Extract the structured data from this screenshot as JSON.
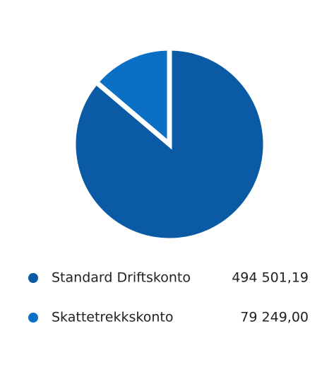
{
  "chart_data": {
    "type": "pie",
    "categories": [
      "Standard Driftskonto",
      "Skattetrekkskonto"
    ],
    "values": [
      494501.19,
      79249.0
    ],
    "value_labels": [
      "494 501,19",
      "79 249,00"
    ],
    "colors": [
      "#0a5aa6",
      "#0b6fc6"
    ]
  }
}
